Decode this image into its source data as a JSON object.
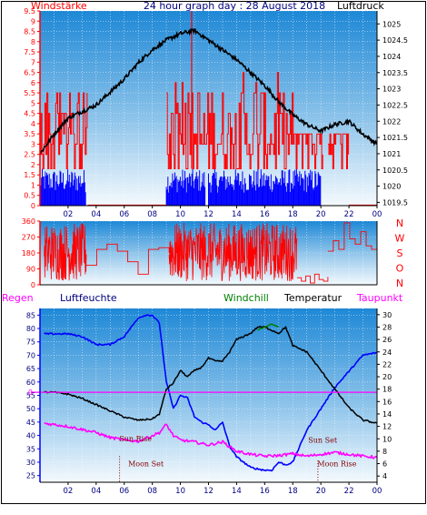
{
  "title": "24 hour graph day : 28 August 2018",
  "x_tick_labels": [
    "02",
    "04",
    "06",
    "08",
    "10",
    "12",
    "14",
    "16",
    "18",
    "20",
    "22",
    "00"
  ],
  "colors": {
    "red": "#ff0000",
    "blue": "#0000ff",
    "black": "#000000",
    "magenta": "#ff00ff",
    "green": "#008000",
    "navy": "#000080",
    "dark_red": "#800000",
    "panel_top": "#1e88d6",
    "panel_bottom": "#f4f9fd"
  },
  "chart_data": [
    {
      "type": "bar",
      "name": "wind-pressure",
      "left_label": "Windstärke",
      "right_label": "Luftdruck",
      "y_left_ticks": [
        "0",
        "0.5",
        "1",
        "1.5",
        "2",
        "2.5",
        "3",
        "3.5",
        "4",
        "4.5",
        "5",
        "5.5",
        "6",
        "6.5",
        "7",
        "7.5",
        "8",
        "8.5",
        "9",
        "9.5"
      ],
      "y_right_ticks": [
        "1019.5",
        "1020",
        "1020.5",
        "1021",
        "1021.5",
        "1022",
        "1022.5",
        "1023",
        "1023.5",
        "1024",
        "1024.5",
        "1025"
      ],
      "ylim_left": [
        0,
        9.5
      ],
      "ylim_right": [
        1019.4,
        1025.4
      ],
      "pressure": {
        "x": [
          0,
          1,
          2,
          3,
          4,
          5,
          6,
          7,
          8,
          9,
          10,
          11,
          12,
          13,
          14,
          15,
          16,
          17,
          18,
          19,
          20,
          21,
          22,
          23,
          24
        ],
        "y": [
          1021.0,
          1021.6,
          1022.1,
          1022.3,
          1022.5,
          1022.9,
          1023.3,
          1023.8,
          1024.2,
          1024.5,
          1024.7,
          1024.8,
          1024.5,
          1024.2,
          1023.9,
          1023.5,
          1023.1,
          1022.6,
          1022.2,
          1021.9,
          1021.7,
          1021.9,
          1022.0,
          1021.6,
          1021.3
        ]
      },
      "wind_blue": {
        "segments": [
          [
            0,
            3.3
          ],
          [
            9,
            11.8
          ],
          [
            12,
            20
          ]
        ],
        "level": 1.8
      },
      "wind_red_gust_max": [
        {
          "x": 0.8,
          "y": 5.5
        },
        {
          "x": 2.0,
          "y": 5.5
        },
        {
          "x": 9.5,
          "y": 6.0
        },
        {
          "x": 10.8,
          "y": 9.5
        },
        {
          "x": 12.8,
          "y": 6.5
        },
        {
          "x": 13.5,
          "y": 6.5
        },
        {
          "x": 15.5,
          "y": 6.0
        },
        {
          "x": 17.5,
          "y": 6.5
        },
        {
          "x": 18.5,
          "y": 3.5
        },
        {
          "x": 21.5,
          "y": 3.5
        }
      ]
    },
    {
      "type": "scatter",
      "name": "wind-direction",
      "right_labels": [
        "N",
        "W",
        "S",
        "O",
        "N"
      ],
      "y_ticks": [
        "0",
        "90",
        "180",
        "270",
        "360"
      ],
      "ylim": [
        0,
        360
      ],
      "active_segments": [
        [
          0.3,
          3.3
        ],
        [
          9.2,
          18.3
        ]
      ],
      "calm_segments": [
        [
          4,
          9
        ],
        [
          18.5,
          20.5
        ],
        [
          20.5,
          24
        ]
      ]
    },
    {
      "type": "line",
      "name": "temperature-humidity",
      "labels": [
        "Regen",
        "Luftfeuchte",
        "Windchill",
        "Temperatur",
        "Taupunkt"
      ],
      "y_left_ticks": [
        "25",
        "30",
        "35",
        "40",
        "45",
        "50",
        "55",
        "60",
        "65",
        "70",
        "75",
        "80",
        "85"
      ],
      "ylim_left": [
        22.5,
        87.5
      ],
      "y_right_ticks": [
        "4",
        "6",
        "8",
        "10",
        "12",
        "14",
        "16",
        "18",
        "20",
        "22",
        "24",
        "26",
        "28",
        "30"
      ],
      "ylim_right": [
        3,
        31
      ],
      "rain_label": "0",
      "humidity": {
        "x": [
          0.3,
          1,
          2,
          3,
          4,
          5,
          6,
          7,
          7.5,
          8,
          8.5,
          9,
          9.5,
          10,
          10.5,
          11,
          11.5,
          12,
          12.5,
          13,
          13.5,
          14,
          15,
          16,
          16.5,
          17,
          17.5,
          18,
          19,
          20,
          21,
          22,
          23,
          24
        ],
        "y": [
          78,
          78,
          78,
          77,
          74,
          74,
          77,
          84,
          85,
          85,
          82,
          60,
          50,
          55,
          54,
          47,
          45,
          44,
          42,
          45,
          36,
          32,
          28,
          27,
          27,
          30,
          29,
          30,
          42,
          50,
          58,
          64,
          70,
          71
        ]
      },
      "temperature": {
        "x": [
          0.3,
          1,
          2,
          3,
          4,
          5,
          6,
          7,
          8,
          8.5,
          9,
          9.5,
          10,
          10.5,
          11,
          11.5,
          12,
          12.5,
          13,
          13.5,
          14,
          14.5,
          15,
          15.5,
          16,
          16.5,
          17,
          17.5,
          18,
          19,
          20,
          21,
          22,
          23,
          24
        ],
        "y": [
          17.5,
          17.5,
          17.2,
          16.5,
          15.5,
          14.5,
          13.5,
          13,
          13.2,
          14,
          18,
          19,
          21,
          20,
          21,
          21.5,
          23,
          22.5,
          22.5,
          24,
          26,
          26.5,
          27,
          28,
          28,
          27.5,
          27,
          28,
          25,
          24,
          21,
          18,
          15,
          13,
          12.5
        ]
      },
      "windchill": {
        "x": [
          15.5,
          16,
          16.5,
          17
        ],
        "y": [
          27.5,
          28,
          28.5,
          28
        ]
      },
      "dewpoint": {
        "x": [
          0.3,
          1,
          2,
          3,
          4,
          5,
          6,
          7,
          8,
          8.5,
          9,
          9.5,
          10,
          11,
          12,
          13,
          14,
          15,
          16,
          17,
          18,
          19,
          20,
          21,
          22,
          23,
          24
        ],
        "y": [
          12.5,
          12.3,
          12,
          11.5,
          11,
          10.2,
          9.8,
          9.6,
          10.5,
          11,
          12.3,
          10.5,
          9.8,
          9.5,
          9,
          9.5,
          8,
          7.5,
          7.2,
          7.3,
          7.6,
          7.2,
          7.5,
          7.8,
          7.5,
          7.2,
          7
        ]
      },
      "annotations": [
        {
          "label": "Sun Rise",
          "x": 6.8
        },
        {
          "label": "Moon Set",
          "x": 6.7
        },
        {
          "label": "Sun Set",
          "x": 20.0
        },
        {
          "label": "Moon Rise",
          "x": 20.5
        }
      ]
    }
  ]
}
